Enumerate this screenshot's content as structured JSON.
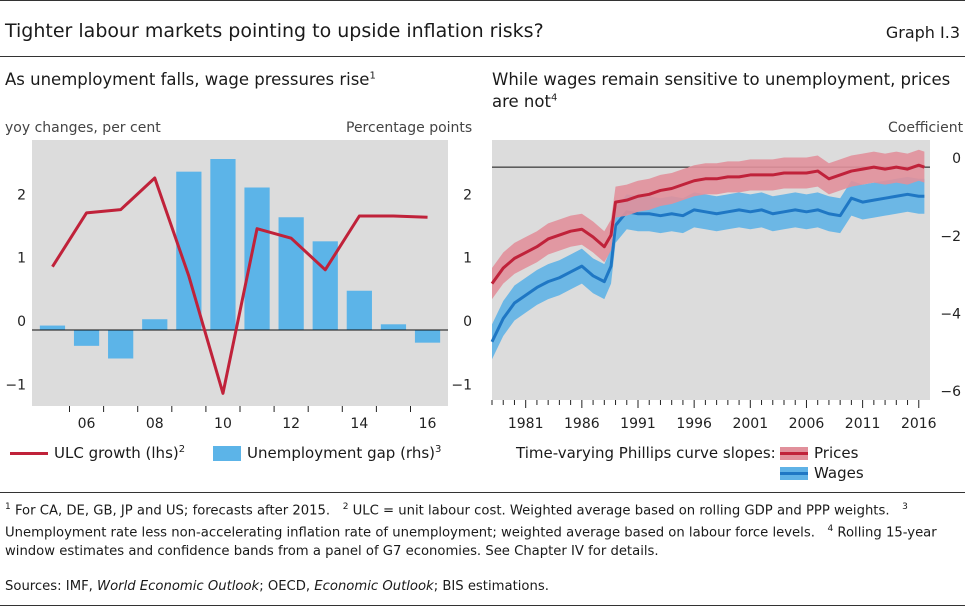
{
  "header": {
    "title": "Tighter labour markets pointing to upside inflation risks?",
    "graph_id": "Graph I.3"
  },
  "left_panel": {
    "subtitle": "As unemployment falls, wage pressures rise",
    "subtitle_note": "1",
    "left_axis_unit": "yoy changes, per cent",
    "right_axis_unit": "Percentage points"
  },
  "right_panel": {
    "subtitle_line1": "While wages remain sensitive to unemployment, prices",
    "subtitle_line2": "are not",
    "subtitle_note": "4",
    "right_axis_unit": "Coefficient"
  },
  "legend": {
    "left_line": "ULC growth (lhs)",
    "left_line_note": "2",
    "left_bar": "Unemployment gap (rhs)",
    "left_bar_note": "3",
    "right_title": "Time-varying Phillips curve slopes:",
    "right_prices": "Prices",
    "right_wages": "Wages"
  },
  "footnotes": {
    "n1": "1",
    "t1": "For CA, DE, GB, JP and US; forecasts after 2015.",
    "n2": "2",
    "t2": "ULC = unit labour cost. Weighted average based on rolling GDP and PPP weights.",
    "n3": "3",
    "t3": "Unemployment rate less non-accelerating inflation rate of unemployment; weighted average based on labour force levels.",
    "n4": "4",
    "t4": "Rolling 15-year window estimates and confidence bands from a panel of G7 economies. See Chapter IV for details."
  },
  "sources": {
    "prefix": "Sources: IMF,",
    "weo": "World Economic Outlook",
    "mid": "; OECD,",
    "eo": "Economic Outlook",
    "suffix": "; BIS estimations."
  },
  "colors": {
    "red": "#c0223a",
    "red_band": "#e1909b",
    "blue": "#1f77c4",
    "blue_band": "#5fb2e6",
    "bar": "#5cb4e8",
    "plot_bg": "#dcdcdc"
  },
  "chart_data": [
    {
      "type": "bar+line",
      "title": "As unemployment falls, wage pressures rise",
      "categories": [
        "05",
        "06",
        "07",
        "08",
        "09",
        "10",
        "11",
        "12",
        "13",
        "14",
        "15",
        "16"
      ],
      "tick_labels": [
        "06",
        "08",
        "10",
        "12",
        "14",
        "16"
      ],
      "ylim": [
        -1.2,
        3.0
      ],
      "yticks": [
        -1,
        0,
        1,
        2
      ],
      "series": [
        {
          "name": "ULC growth (lhs)",
          "kind": "line",
          "axis": "lhs",
          "values": [
            1.0,
            1.85,
            1.9,
            2.4,
            0.85,
            -1.0,
            1.6,
            1.45,
            0.95,
            1.8,
            1.8,
            1.78
          ]
        },
        {
          "name": "Unemployment gap (rhs)",
          "kind": "bar",
          "axis": "rhs",
          "values": [
            0.07,
            -0.25,
            -0.45,
            0.17,
            2.5,
            2.7,
            2.25,
            1.78,
            1.4,
            0.62,
            0.09,
            -0.2
          ]
        }
      ]
    },
    {
      "type": "line",
      "title": "While wages remain sensitive to unemployment, prices are not",
      "xlim": [
        1978,
        2017
      ],
      "xticks": [
        1981,
        1986,
        1991,
        1996,
        2001,
        2006,
        2011,
        2016
      ],
      "ylim": [
        -6,
        0.7
      ],
      "yticks": [
        -6,
        -4,
        -2,
        0
      ],
      "series": [
        {
          "name": "Prices",
          "x": [
            1978,
            1979,
            1980,
            1981,
            1982,
            1983,
            1984,
            1985,
            1986,
            1987,
            1988,
            1988.6,
            1989,
            1990,
            1991,
            1992,
            1993,
            1994,
            1995,
            1996,
            1997,
            1998,
            1999,
            2000,
            2001,
            2002,
            2003,
            2004,
            2005,
            2006,
            2007,
            2008,
            2009,
            2010,
            2011,
            2012,
            2013,
            2014,
            2015,
            2016,
            2016.5
          ],
          "values": [
            -3.0,
            -2.6,
            -2.35,
            -2.2,
            -2.05,
            -1.85,
            -1.75,
            -1.65,
            -1.6,
            -1.8,
            -2.05,
            -1.75,
            -0.9,
            -0.85,
            -0.75,
            -0.7,
            -0.6,
            -0.55,
            -0.45,
            -0.35,
            -0.3,
            -0.3,
            -0.25,
            -0.25,
            -0.2,
            -0.2,
            -0.2,
            -0.15,
            -0.15,
            -0.15,
            -0.1,
            -0.3,
            -0.2,
            -0.1,
            -0.05,
            0.0,
            -0.05,
            0.0,
            -0.05,
            0.05,
            0.0
          ],
          "band": 0.4
        },
        {
          "name": "Wages",
          "x": [
            1978,
            1979,
            1980,
            1981,
            1982,
            1983,
            1984,
            1985,
            1986,
            1987,
            1988,
            1988.6,
            1989,
            1990,
            1991,
            1992,
            1993,
            1994,
            1995,
            1996,
            1997,
            1998,
            1999,
            2000,
            2001,
            2002,
            2003,
            2004,
            2005,
            2006,
            2007,
            2008,
            2009,
            2010,
            2011,
            2012,
            2013,
            2014,
            2015,
            2016,
            2016.5
          ],
          "values": [
            -4.5,
            -3.9,
            -3.5,
            -3.3,
            -3.1,
            -2.95,
            -2.85,
            -2.7,
            -2.55,
            -2.8,
            -2.95,
            -2.55,
            -1.5,
            -1.15,
            -1.2,
            -1.2,
            -1.25,
            -1.2,
            -1.25,
            -1.1,
            -1.15,
            -1.2,
            -1.15,
            -1.1,
            -1.15,
            -1.1,
            -1.2,
            -1.15,
            -1.1,
            -1.15,
            -1.1,
            -1.2,
            -1.25,
            -0.8,
            -0.9,
            -0.85,
            -0.8,
            -0.75,
            -0.7,
            -0.75,
            -0.75
          ],
          "band": 0.45
        }
      ]
    }
  ]
}
